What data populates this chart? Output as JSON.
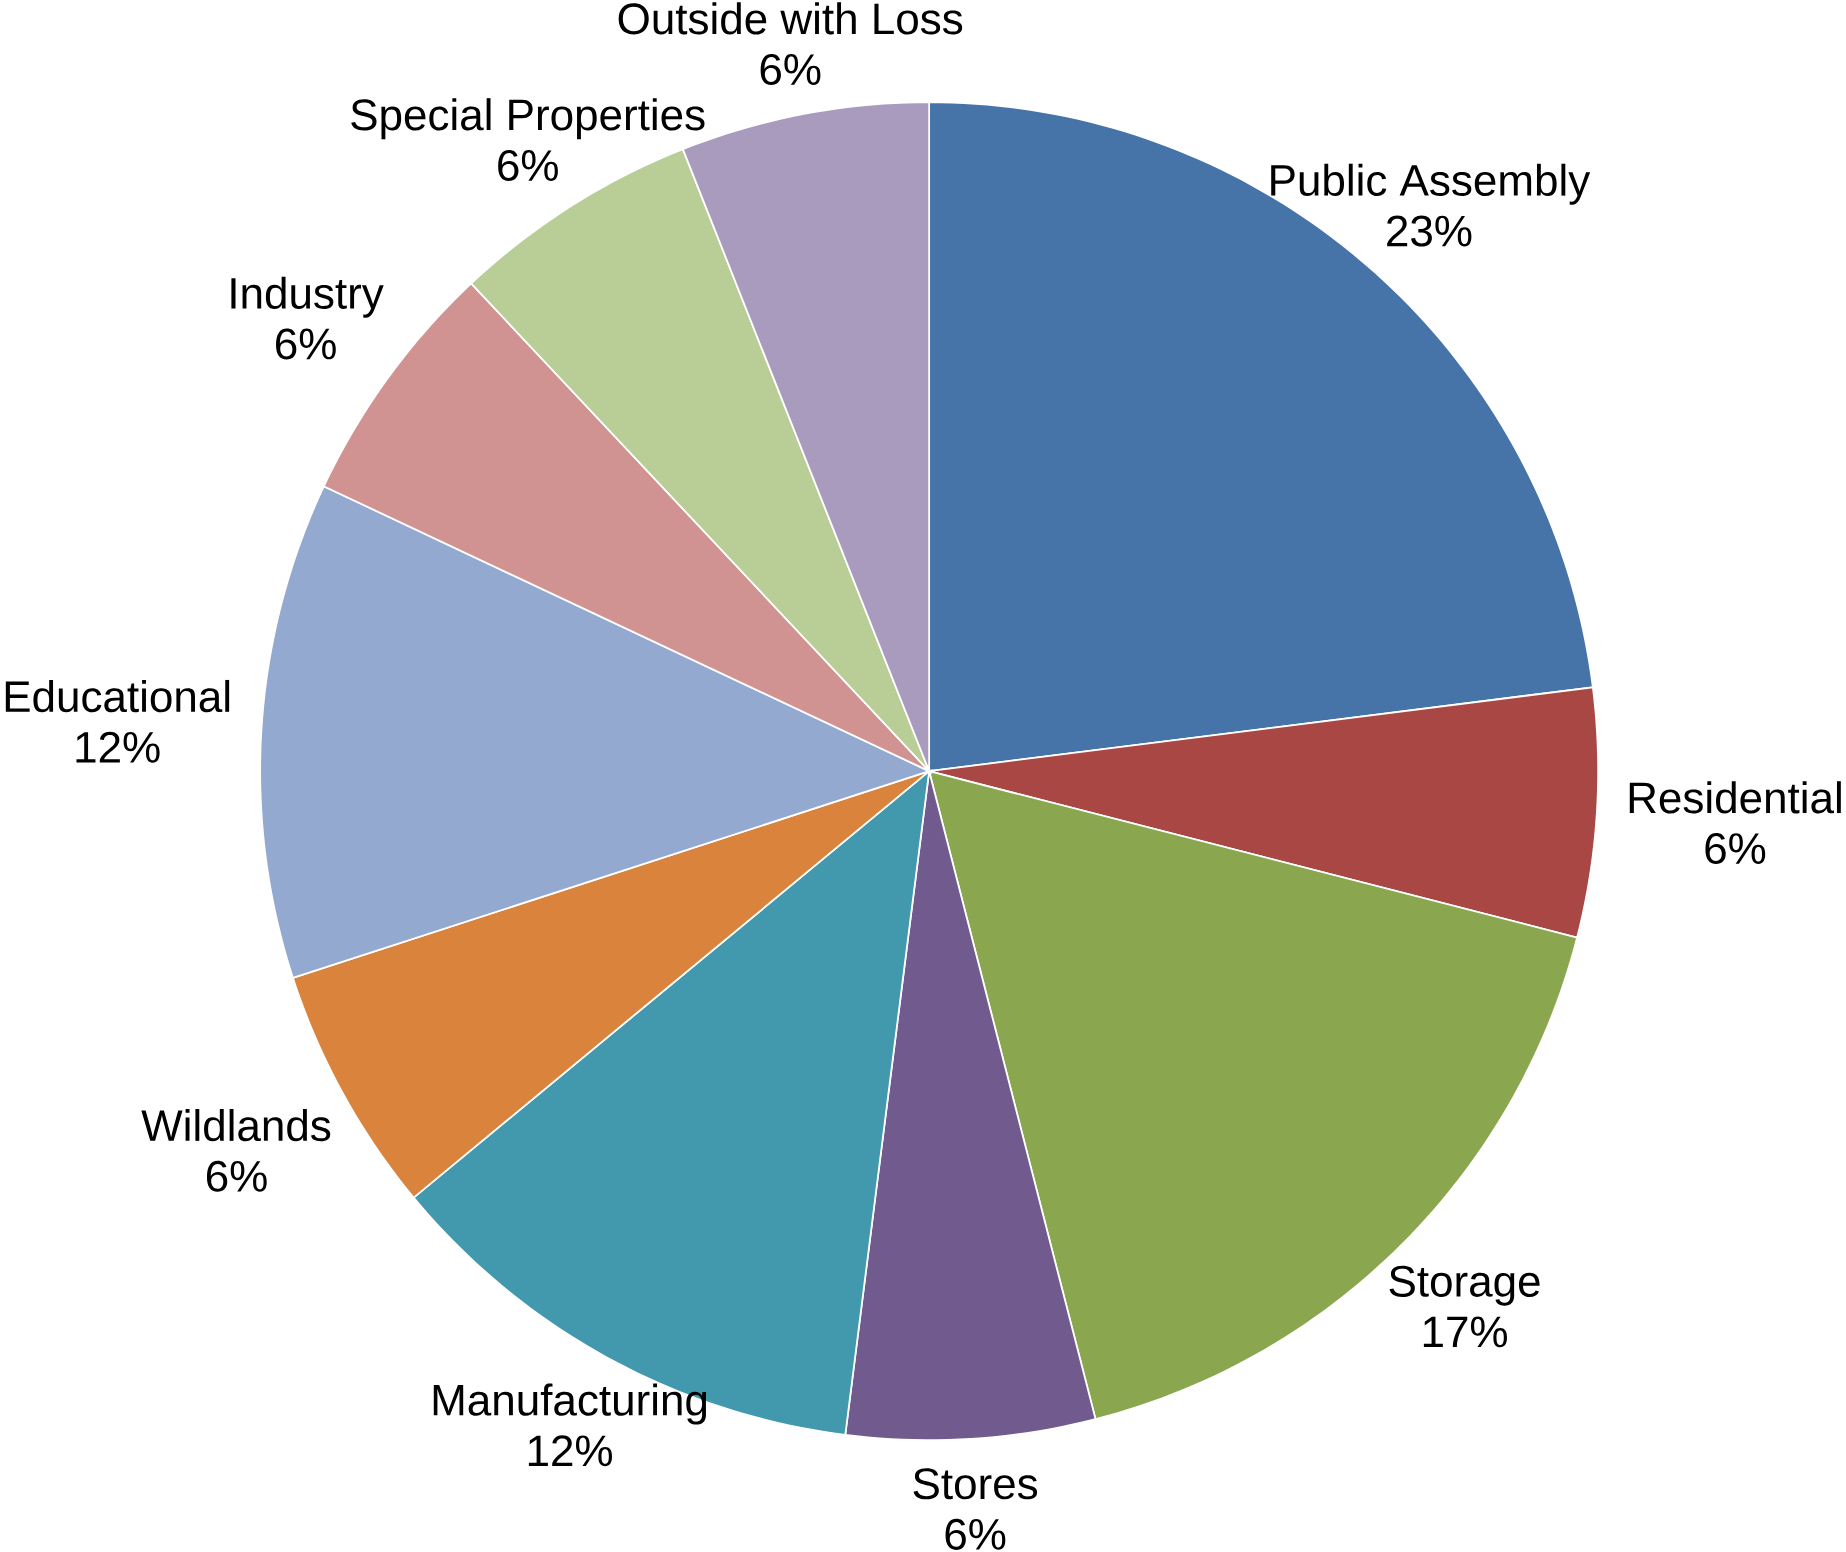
{
  "chart_data": {
    "type": "pie",
    "categories": [
      "Public Assembly",
      "Residential",
      "Storage",
      "Stores",
      "Manufacturing",
      "Wildlands",
      "Educational",
      "Industry",
      "Special Properties",
      "Outside with Loss"
    ],
    "values": [
      23,
      6,
      17,
      6,
      12,
      6,
      12,
      6,
      6,
      6
    ],
    "value_labels": [
      "23%",
      "6%",
      "17%",
      "6%",
      "12%",
      "6%",
      "12%",
      "6%",
      "6%",
      "6%"
    ],
    "colors": [
      "#4674a8",
      "#a94744",
      "#8aa64e",
      "#705a8e",
      "#4299ae",
      "#d9833d",
      "#93a9d0",
      "#d09392",
      "#b9cd96",
      "#a99bbd"
    ]
  }
}
